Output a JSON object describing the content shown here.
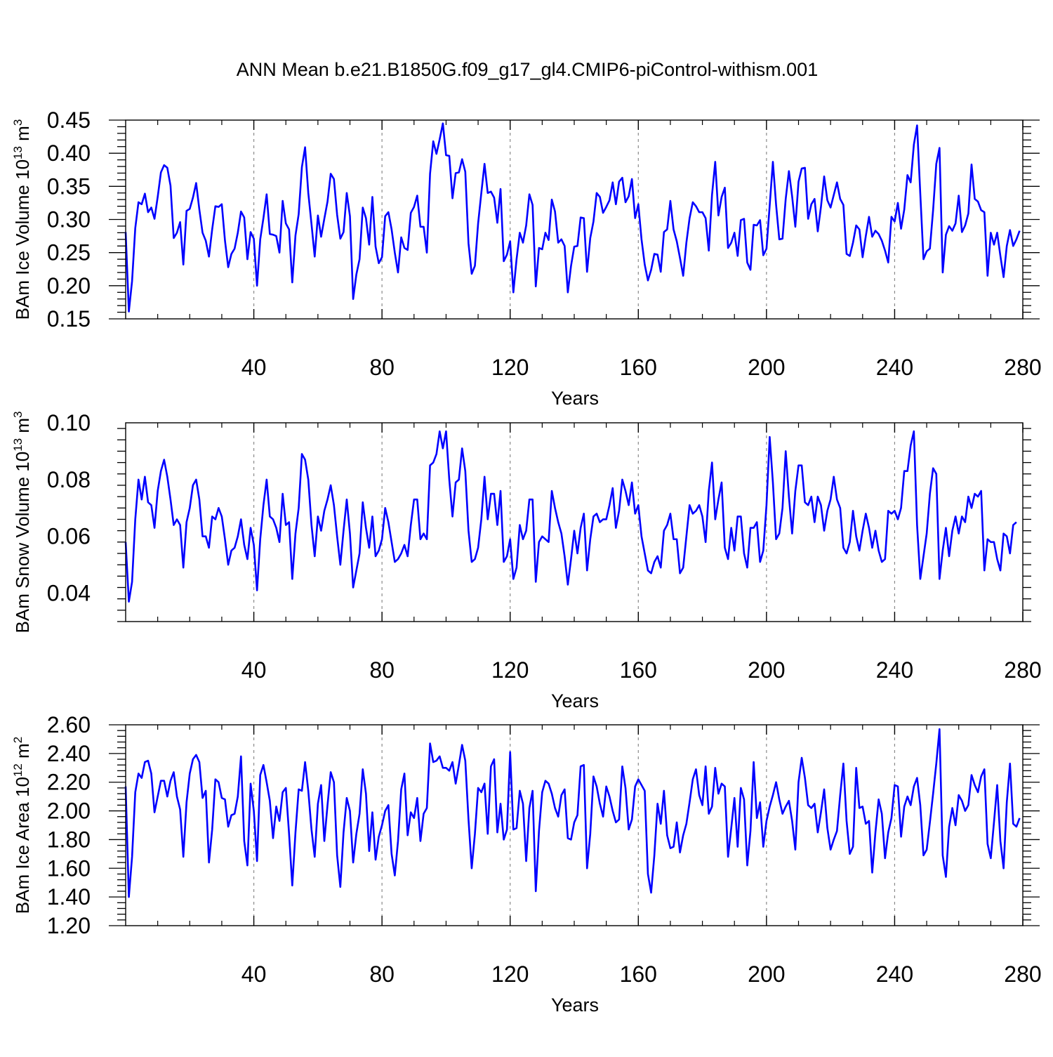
{
  "title": "ANN Mean b.e21.B1850G.f09_g17_gl4.CMIP6-piControl-withism.001",
  "line_color": "#0000ff",
  "chart_data": [
    {
      "type": "line",
      "ylabel_main": "BAm Ice Volume 10",
      "ylabel_exp": "13",
      "ylabel_unit": " m",
      "ylabel_unit_exp": "3",
      "xlabel": "Years",
      "xlim": [
        0,
        280
      ],
      "ylim": [
        0.15,
        0.45
      ],
      "xticks": [
        40,
        80,
        120,
        160,
        200,
        240,
        280
      ],
      "xtick_labels": [
        "40",
        "80",
        "120",
        "160",
        "200",
        "240",
        "280"
      ],
      "yticks": [
        0.15,
        0.2,
        0.25,
        0.3,
        0.35,
        0.4,
        0.45
      ],
      "ytick_labels": [
        "0.15",
        "0.20",
        "0.25",
        "0.30",
        "0.35",
        "0.40",
        "0.45"
      ],
      "grid_x": "dashed vertical at major x ticks",
      "x_start": 0,
      "values": [
        0.281,
        0.161,
        0.207,
        0.287,
        0.326,
        0.323,
        0.339,
        0.311,
        0.318,
        0.301,
        0.334,
        0.371,
        0.382,
        0.378,
        0.351,
        0.272,
        0.28,
        0.296,
        0.232,
        0.313,
        0.316,
        0.333,
        0.355,
        0.315,
        0.28,
        0.268,
        0.244,
        0.285,
        0.32,
        0.319,
        0.323,
        0.268,
        0.228,
        0.248,
        0.256,
        0.28,
        0.312,
        0.303,
        0.24,
        0.281,
        0.271,
        0.2,
        0.27,
        0.302,
        0.338,
        0.278,
        0.277,
        0.275,
        0.25,
        0.328,
        0.294,
        0.285,
        0.205,
        0.276,
        0.308,
        0.379,
        0.409,
        0.34,
        0.293,
        0.244,
        0.306,
        0.274,
        0.301,
        0.327,
        0.369,
        0.361,
        0.307,
        0.271,
        0.281,
        0.34,
        0.305,
        0.18,
        0.217,
        0.24,
        0.318,
        0.302,
        0.262,
        0.334,
        0.259,
        0.234,
        0.243,
        0.305,
        0.311,
        0.285,
        0.25,
        0.22,
        0.273,
        0.257,
        0.254,
        0.31,
        0.319,
        0.336,
        0.289,
        0.289,
        0.25,
        0.369,
        0.418,
        0.399,
        0.421,
        0.445,
        0.397,
        0.396,
        0.332,
        0.37,
        0.371,
        0.391,
        0.372,
        0.264,
        0.218,
        0.23,
        0.294,
        0.34,
        0.384,
        0.34,
        0.342,
        0.333,
        0.295,
        0.346,
        0.237,
        0.247,
        0.267,
        0.19,
        0.24,
        0.28,
        0.265,
        0.291,
        0.338,
        0.322,
        0.199,
        0.257,
        0.255,
        0.28,
        0.269,
        0.33,
        0.312,
        0.265,
        0.27,
        0.26,
        0.19,
        0.23,
        0.259,
        0.26,
        0.303,
        0.302,
        0.221,
        0.272,
        0.297,
        0.34,
        0.334,
        0.31,
        0.319,
        0.329,
        0.356,
        0.323,
        0.357,
        0.363,
        0.326,
        0.335,
        0.361,
        0.302,
        0.323,
        0.27,
        0.232,
        0.208,
        0.224,
        0.248,
        0.247,
        0.221,
        0.281,
        0.285,
        0.328,
        0.285,
        0.267,
        0.242,
        0.215,
        0.265,
        0.302,
        0.326,
        0.32,
        0.311,
        0.311,
        0.302,
        0.253,
        0.337,
        0.387,
        0.306,
        0.334,
        0.348,
        0.257,
        0.265,
        0.28,
        0.245,
        0.299,
        0.301,
        0.235,
        0.224,
        0.292,
        0.291,
        0.299,
        0.246,
        0.256,
        0.321,
        0.387,
        0.322,
        0.27,
        0.271,
        0.331,
        0.373,
        0.335,
        0.289,
        0.357,
        0.377,
        0.378,
        0.301,
        0.323,
        0.331,
        0.282,
        0.319,
        0.365,
        0.329,
        0.318,
        0.337,
        0.356,
        0.331,
        0.322,
        0.248,
        0.245,
        0.265,
        0.291,
        0.285,
        0.243,
        0.275,
        0.304,
        0.274,
        0.283,
        0.278,
        0.268,
        0.253,
        0.235,
        0.304,
        0.297,
        0.325,
        0.286,
        0.315,
        0.367,
        0.356,
        0.413,
        0.442,
        0.339,
        0.24,
        0.252,
        0.256,
        0.314,
        0.384,
        0.408,
        0.22,
        0.277,
        0.29,
        0.283,
        0.294,
        0.336,
        0.281,
        0.291,
        0.309,
        0.383,
        0.331,
        0.327,
        0.314,
        0.311,
        0.215,
        0.28,
        0.262,
        0.28,
        0.245,
        0.213,
        0.26,
        0.284,
        0.26,
        0.27,
        0.283
      ]
    },
    {
      "type": "line",
      "ylabel_main": "BAm Snow Volume 10",
      "ylabel_exp": "13",
      "ylabel_unit": " m",
      "ylabel_unit_exp": "3",
      "xlabel": "Years",
      "xlim": [
        0,
        280
      ],
      "ylim": [
        0.03,
        0.1
      ],
      "xticks": [
        40,
        80,
        120,
        160,
        200,
        240,
        280
      ],
      "xtick_labels": [
        "40",
        "80",
        "120",
        "160",
        "200",
        "240",
        "280"
      ],
      "yticks": [
        0.04,
        0.06,
        0.08,
        0.1
      ],
      "ytick_labels": [
        "0.04",
        "0.06",
        "0.08",
        "0.10"
      ],
      "grid_x": "dashed vertical at major x ticks",
      "x_start": 0,
      "values": [
        0.058,
        0.037,
        0.044,
        0.066,
        0.08,
        0.073,
        0.081,
        0.072,
        0.071,
        0.063,
        0.076,
        0.083,
        0.087,
        0.081,
        0.073,
        0.064,
        0.066,
        0.064,
        0.049,
        0.065,
        0.07,
        0.078,
        0.08,
        0.073,
        0.06,
        0.06,
        0.056,
        0.067,
        0.066,
        0.07,
        0.067,
        0.059,
        0.05,
        0.055,
        0.056,
        0.06,
        0.066,
        0.057,
        0.052,
        0.063,
        0.057,
        0.041,
        0.059,
        0.071,
        0.08,
        0.067,
        0.066,
        0.063,
        0.058,
        0.075,
        0.064,
        0.065,
        0.045,
        0.061,
        0.07,
        0.089,
        0.087,
        0.08,
        0.064,
        0.053,
        0.067,
        0.062,
        0.069,
        0.073,
        0.078,
        0.071,
        0.06,
        0.05,
        0.062,
        0.073,
        0.061,
        0.042,
        0.048,
        0.054,
        0.072,
        0.063,
        0.056,
        0.067,
        0.053,
        0.055,
        0.059,
        0.07,
        0.065,
        0.058,
        0.051,
        0.052,
        0.054,
        0.057,
        0.053,
        0.064,
        0.073,
        0.073,
        0.059,
        0.061,
        0.059,
        0.085,
        0.086,
        0.089,
        0.097,
        0.091,
        0.097,
        0.08,
        0.067,
        0.079,
        0.08,
        0.091,
        0.083,
        0.062,
        0.051,
        0.052,
        0.056,
        0.066,
        0.081,
        0.066,
        0.075,
        0.075,
        0.064,
        0.076,
        0.051,
        0.053,
        0.059,
        0.045,
        0.049,
        0.064,
        0.059,
        0.062,
        0.073,
        0.073,
        0.044,
        0.058,
        0.06,
        0.059,
        0.058,
        0.076,
        0.07,
        0.065,
        0.061,
        0.053,
        0.043,
        0.052,
        0.062,
        0.054,
        0.063,
        0.068,
        0.048,
        0.059,
        0.067,
        0.068,
        0.065,
        0.066,
        0.066,
        0.071,
        0.077,
        0.063,
        0.069,
        0.08,
        0.076,
        0.071,
        0.079,
        0.068,
        0.071,
        0.06,
        0.054,
        0.048,
        0.047,
        0.051,
        0.053,
        0.049,
        0.062,
        0.064,
        0.068,
        0.059,
        0.059,
        0.047,
        0.049,
        0.06,
        0.071,
        0.068,
        0.069,
        0.071,
        0.067,
        0.058,
        0.076,
        0.086,
        0.066,
        0.073,
        0.079,
        0.056,
        0.052,
        0.063,
        0.055,
        0.067,
        0.067,
        0.054,
        0.049,
        0.063,
        0.063,
        0.065,
        0.051,
        0.055,
        0.071,
        0.095,
        0.079,
        0.059,
        0.061,
        0.07,
        0.09,
        0.074,
        0.061,
        0.076,
        0.085,
        0.085,
        0.072,
        0.071,
        0.074,
        0.065,
        0.074,
        0.071,
        0.062,
        0.069,
        0.073,
        0.081,
        0.073,
        0.07,
        0.056,
        0.054,
        0.058,
        0.069,
        0.06,
        0.055,
        0.062,
        0.068,
        0.063,
        0.056,
        0.062,
        0.055,
        0.051,
        0.052,
        0.069,
        0.068,
        0.069,
        0.066,
        0.07,
        0.083,
        0.083,
        0.092,
        0.097,
        0.064,
        0.045,
        0.053,
        0.061,
        0.075,
        0.084,
        0.082,
        0.045,
        0.055,
        0.063,
        0.053,
        0.062,
        0.067,
        0.061,
        0.067,
        0.065,
        0.074,
        0.07,
        0.075,
        0.074,
        0.076,
        0.048,
        0.059,
        0.058,
        0.058,
        0.052,
        0.048,
        0.061,
        0.06,
        0.054,
        0.064,
        0.065
      ]
    },
    {
      "type": "line",
      "ylabel_main": "BAm Ice Area 10",
      "ylabel_exp": "12",
      "ylabel_unit": " m",
      "ylabel_unit_exp": "2",
      "xlabel": "Years",
      "xlim": [
        0,
        280
      ],
      "ylim": [
        1.2,
        2.6
      ],
      "xticks": [
        40,
        80,
        120,
        160,
        200,
        240,
        280
      ],
      "xtick_labels": [
        "40",
        "80",
        "120",
        "160",
        "200",
        "240",
        "280"
      ],
      "yticks": [
        1.2,
        1.4,
        1.6,
        1.8,
        2.0,
        2.2,
        2.4,
        2.6
      ],
      "ytick_labels": [
        "1.20",
        "1.40",
        "1.60",
        "1.80",
        "2.00",
        "2.20",
        "2.40",
        "2.60"
      ],
      "grid_x": "dashed vertical at major x ticks",
      "x_start": 0,
      "values": [
        2.17,
        1.4,
        1.68,
        2.13,
        2.26,
        2.23,
        2.34,
        2.35,
        2.26,
        1.99,
        2.1,
        2.21,
        2.21,
        2.1,
        2.21,
        2.27,
        2.1,
        2.01,
        1.68,
        2.06,
        2.26,
        2.36,
        2.39,
        2.34,
        2.09,
        2.14,
        1.64,
        1.87,
        2.22,
        2.2,
        2.09,
        2.08,
        1.89,
        1.97,
        1.98,
        2.1,
        2.38,
        1.79,
        1.62,
        2.19,
        2.0,
        1.65,
        2.25,
        2.32,
        2.2,
        2.07,
        1.81,
        2.03,
        1.93,
        2.13,
        2.16,
        1.84,
        1.48,
        1.85,
        2.15,
        2.14,
        2.34,
        2.14,
        1.87,
        1.68,
        2.05,
        2.18,
        1.79,
        2.04,
        2.27,
        2.2,
        1.69,
        1.47,
        1.85,
        2.09,
        2.0,
        1.64,
        1.84,
        1.98,
        2.29,
        2.12,
        1.72,
        1.99,
        1.66,
        1.82,
        1.9,
        2.0,
        2.04,
        1.7,
        1.55,
        1.79,
        2.15,
        2.26,
        1.83,
        1.99,
        1.95,
        2.09,
        1.79,
        1.98,
        2.02,
        2.47,
        2.34,
        2.35,
        2.38,
        2.3,
        2.3,
        2.28,
        2.34,
        2.19,
        2.32,
        2.46,
        2.35,
        1.94,
        1.6,
        1.84,
        2.16,
        2.13,
        2.19,
        1.84,
        2.31,
        2.36,
        1.85,
        2.05,
        1.8,
        1.87,
        2.41,
        1.87,
        1.88,
        2.14,
        2.05,
        1.65,
        2.02,
        2.14,
        1.44,
        1.86,
        2.13,
        2.21,
        2.19,
        2.12,
        2.02,
        1.96,
        2.11,
        2.15,
        1.81,
        1.8,
        1.92,
        1.97,
        2.31,
        2.32,
        1.6,
        1.84,
        2.24,
        2.17,
        2.05,
        1.96,
        2.17,
        2.1,
        2.0,
        1.92,
        1.94,
        2.31,
        2.16,
        1.87,
        1.94,
        2.17,
        2.22,
        2.18,
        2.14,
        1.56,
        1.43,
        1.69,
        2.05,
        1.91,
        2.14,
        1.83,
        1.74,
        1.75,
        1.92,
        1.71,
        1.83,
        1.91,
        2.06,
        2.22,
        2.29,
        2.11,
        2.04,
        2.31,
        1.98,
        2.03,
        2.3,
        2.12,
        2.19,
        2.17,
        1.68,
        1.88,
        2.09,
        1.75,
        2.16,
        2.08,
        1.62,
        1.86,
        2.34,
        1.95,
        2.06,
        1.75,
        1.93,
        2.03,
        2.11,
        2.2,
        2.08,
        1.98,
        2.03,
        2.07,
        1.93,
        1.73,
        2.2,
        2.37,
        2.23,
        2.04,
        2.02,
        2.05,
        1.85,
        1.99,
        2.15,
        1.88,
        1.73,
        1.8,
        1.86,
        2.11,
        2.33,
        1.93,
        1.7,
        1.75,
        2.3,
        2.02,
        2.03,
        1.91,
        1.93,
        1.57,
        1.85,
        2.08,
        1.98,
        1.67,
        1.85,
        1.95,
        2.18,
        2.17,
        1.82,
        2.03,
        2.1,
        2.04,
        2.17,
        2.23,
        2.04,
        1.69,
        1.73,
        1.92,
        2.12,
        2.33,
        2.57,
        1.69,
        1.54,
        1.89,
        2.02,
        1.9,
        2.11,
        2.07,
        2.0,
        2.04,
        2.25,
        2.18,
        2.13,
        2.24,
        2.29,
        1.77,
        1.67,
        1.92,
        2.18,
        1.79,
        1.6,
        2.06,
        2.33,
        1.91,
        1.89,
        1.95
      ]
    }
  ]
}
